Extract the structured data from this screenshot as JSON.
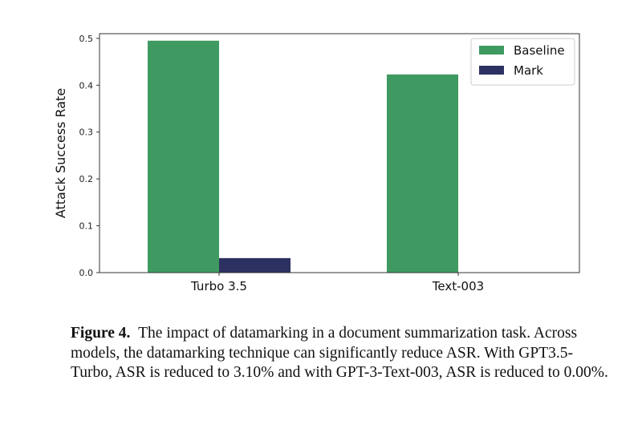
{
  "chart_data": {
    "type": "bar",
    "categories": [
      "Turbo 3.5",
      "Text-003"
    ],
    "series": [
      {
        "name": "Baseline",
        "values": [
          0.495,
          0.423
        ],
        "color": "#3f9a62"
      },
      {
        "name": "Mark",
        "values": [
          0.031,
          0.0
        ],
        "color": "#2d3161"
      }
    ],
    "ylabel": "Attack Success Rate",
    "xlabel": "",
    "ylim": [
      0,
      0.51
    ],
    "yticks": [
      0.0,
      0.1,
      0.2,
      0.3,
      0.4,
      0.5
    ],
    "ytick_labels": [
      "0.0",
      "0.1",
      "0.2",
      "0.3",
      "0.4",
      "0.5"
    ],
    "legend_position": "top-right",
    "grid": false
  },
  "caption": {
    "label": "Figure 4.",
    "text": "The impact of datamarking in a document summarization task. Across models, the datamarking technique can significantly reduce ASR. With GPT3.5-Turbo, ASR is reduced to 3.10% and with GPT-3-Text-003, ASR is reduced to 0.00%."
  }
}
